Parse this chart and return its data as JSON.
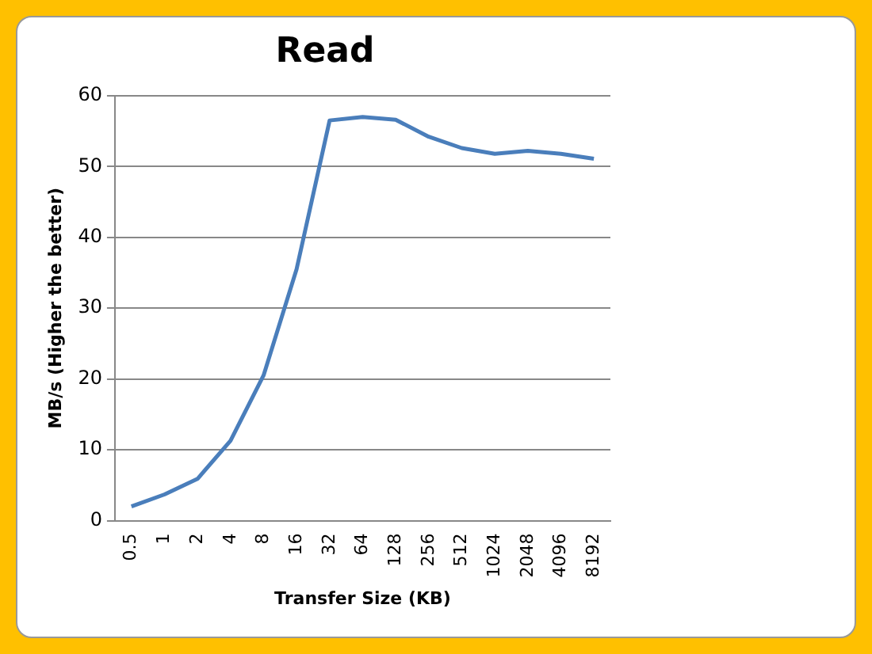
{
  "chart_data": {
    "type": "line",
    "title": "Read",
    "xlabel": "Transfer Size (KB)",
    "ylabel": "MB/s (Higher the better)",
    "categories": [
      "0.5",
      "1",
      "2",
      "4",
      "8",
      "16",
      "32",
      "64",
      "128",
      "256",
      "512",
      "1024",
      "2048",
      "4096",
      "8192"
    ],
    "series": [
      {
        "color": "#4a7ebb",
        "values": [
          2,
          3.7,
          5.9,
          11.3,
          20.5,
          35.5,
          56.5,
          57,
          56.6,
          54.2,
          52.6,
          51.8,
          52.2,
          51.8,
          51.1
        ]
      }
    ],
    "ylim": [
      0,
      60
    ],
    "yticks": [
      0,
      10,
      20,
      30,
      40,
      50,
      60
    ],
    "grid": "y",
    "marker": "none",
    "line_style": "solid"
  }
}
